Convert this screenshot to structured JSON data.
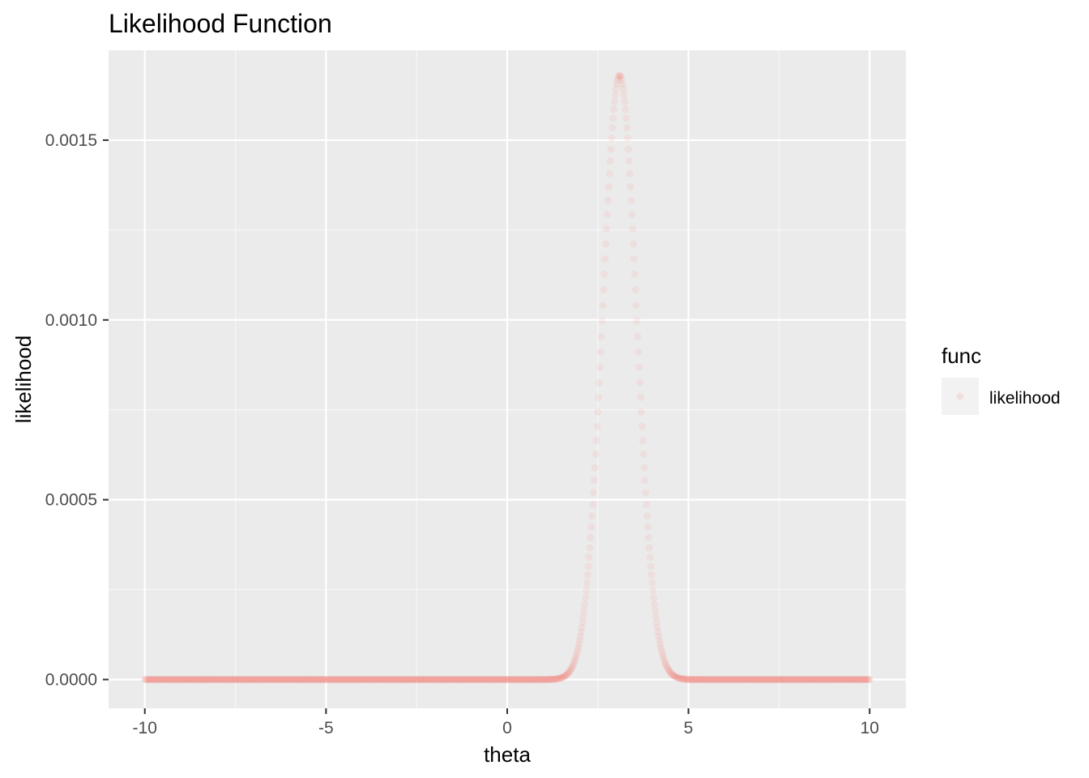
{
  "chart_data": {
    "type": "scatter",
    "title": "Likelihood Function",
    "xlabel": "theta",
    "ylabel": "likelihood",
    "xlim": [
      -11,
      11
    ],
    "ylim": [
      -8e-05,
      0.00175
    ],
    "x_ticks": [
      -10,
      -5,
      0,
      5,
      10
    ],
    "x_tick_labels": [
      "-10",
      "-5",
      "0",
      "5",
      "10"
    ],
    "y_ticks": [
      0,
      0.0005,
      0.001,
      0.0015
    ],
    "y_tick_labels": [
      "0.0000",
      "0.0005",
      "0.0010",
      "0.0015"
    ],
    "grid": true,
    "legend": {
      "title": "func",
      "position": "right",
      "entries": [
        "likelihood"
      ]
    },
    "series": [
      {
        "name": "likelihood",
        "color": "#F8766D",
        "x_from": -10,
        "x_to": 10,
        "x_step": 0.02,
        "peak_x": 3.1,
        "peak_y": 0.00168,
        "sd": 0.47
      }
    ]
  }
}
